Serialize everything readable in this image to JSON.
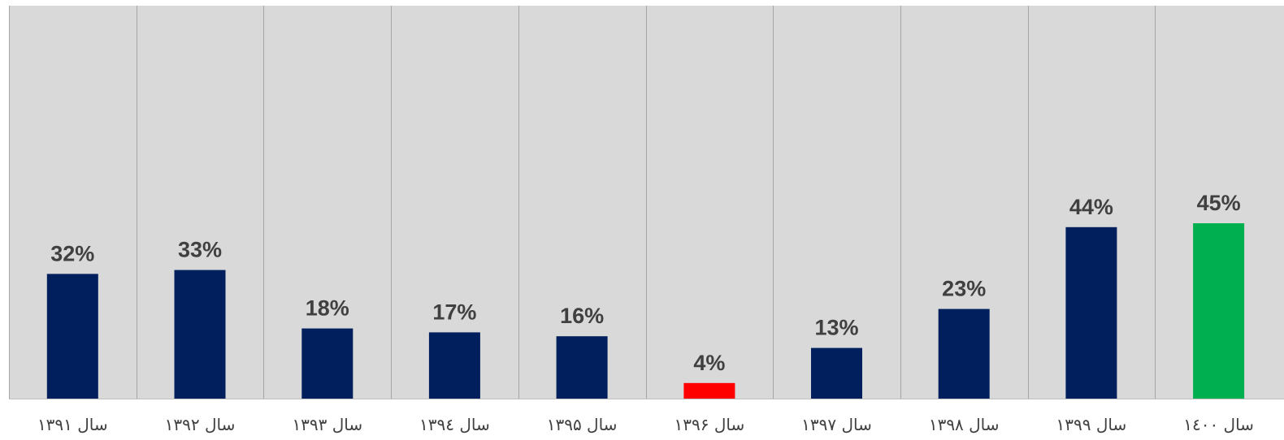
{
  "chart_data": {
    "type": "bar",
    "categories": [
      "سال ۱۳۹۱",
      "سال ۱۳۹۲",
      "سال ۱۳۹۳",
      "سال ۱۳۹٤",
      "سال ۱۳۹۵",
      "سال ۱۳۹۶",
      "سال ۱۳۹۷",
      "سال ۱۳۹۸",
      "سال ۱۳۹۹",
      "سال ۱٤۰۰"
    ],
    "values": [
      32,
      33,
      18,
      17,
      16,
      4,
      13,
      23,
      44,
      45
    ],
    "data_labels": [
      "32%",
      "33%",
      "18%",
      "17%",
      "16%",
      "4%",
      "13%",
      "23%",
      "44%",
      "45%"
    ],
    "bar_colors": [
      "#001f5c",
      "#001f5c",
      "#001f5c",
      "#001f5c",
      "#001f5c",
      "#ff0000",
      "#001f5c",
      "#001f5c",
      "#001f5c",
      "#00b050"
    ],
    "plot_background": "#d9d9d9",
    "divider_color": "#a6a6a6",
    "title": "",
    "xlabel": "",
    "ylabel": "",
    "ylim": [
      0,
      100
    ],
    "grid": false,
    "legend": "none"
  }
}
